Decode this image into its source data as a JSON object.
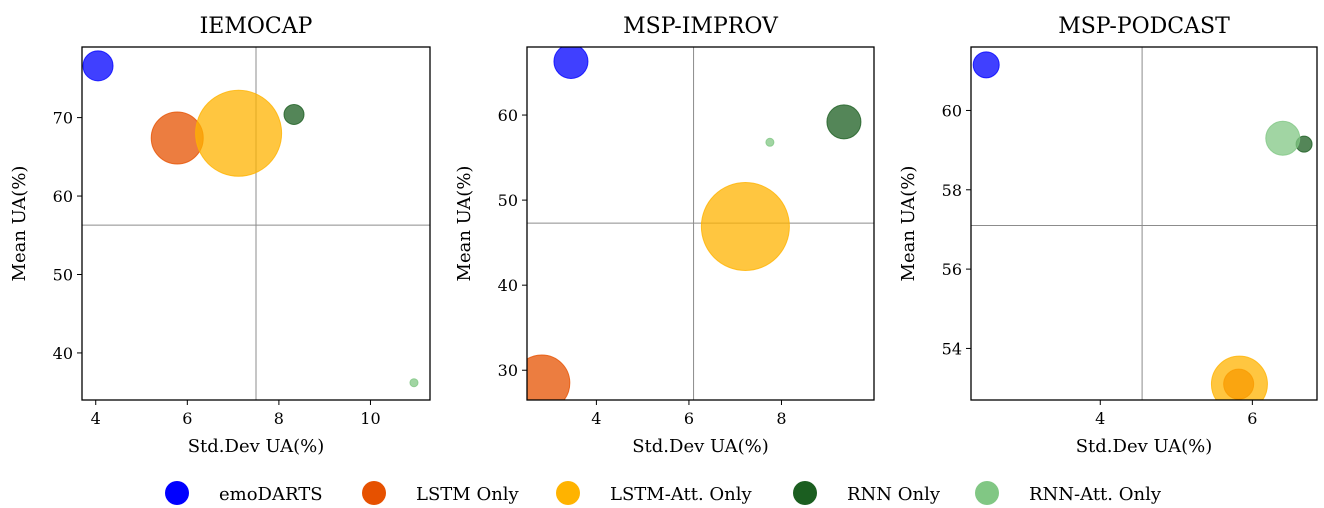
{
  "legend": [
    {
      "label": "emoDARTS",
      "color": "#0000ff"
    },
    {
      "label": "LSTM Only",
      "color": "#e65100"
    },
    {
      "label": "LSTM-Att. Only",
      "color": "#ffb300"
    },
    {
      "label": "RNN Only",
      "color": "#1b5e20"
    },
    {
      "label": "RNN-Att. Only",
      "color": "#81c784"
    }
  ],
  "chart_data": [
    {
      "type": "scatter",
      "title": "IEMOCAP",
      "xlabel": "Std.Dev UA(%)",
      "ylabel": "Mean UA(%)",
      "xlim": [
        3.7,
        11.3
      ],
      "ylim": [
        34.0,
        79.0
      ],
      "xticks": [
        4,
        6,
        8,
        10
      ],
      "yticks": [
        40,
        50,
        60,
        70
      ],
      "vline": 7.5,
      "hline": 56.3,
      "series": [
        {
          "name": "emoDARTS",
          "x": 4.05,
          "y": 76.6,
          "size": 15
        },
        {
          "name": "LSTM Only",
          "x": 5.78,
          "y": 67.4,
          "size": 26
        },
        {
          "name": "LSTM-Att. Only",
          "x": 7.12,
          "y": 68.0,
          "size": 43
        },
        {
          "name": "RNN Only",
          "x": 8.33,
          "y": 70.4,
          "size": 10
        },
        {
          "name": "RNN-Att. Only",
          "x": 10.95,
          "y": 36.2,
          "size": 4
        }
      ]
    },
    {
      "type": "scatter",
      "title": "MSP-IMPROV",
      "xlabel": "Std.Dev UA(%)",
      "ylabel": "Mean UA(%)",
      "xlim": [
        2.5,
        10.0
      ],
      "ylim": [
        26.5,
        68.0
      ],
      "xticks": [
        4,
        6,
        8
      ],
      "yticks": [
        30,
        40,
        50,
        60
      ],
      "vline": 6.1,
      "hline": 47.3,
      "series": [
        {
          "name": "emoDARTS",
          "x": 3.45,
          "y": 66.3,
          "size": 17
        },
        {
          "name": "LSTM Only",
          "x": 2.82,
          "y": 28.5,
          "size": 28
        },
        {
          "name": "LSTM-Att. Only",
          "x": 7.22,
          "y": 46.9,
          "size": 44
        },
        {
          "name": "RNN Only",
          "x": 9.35,
          "y": 59.2,
          "size": 17
        },
        {
          "name": "RNN-Att. Only",
          "x": 7.75,
          "y": 56.8,
          "size": 4
        }
      ]
    },
    {
      "type": "scatter",
      "title": "MSP-PODCAST",
      "xlabel": "Std.Dev UA(%)",
      "ylabel": "Mean UA(%)",
      "xlim": [
        2.3,
        6.85
      ],
      "ylim": [
        52.7,
        61.6
      ],
      "xticks": [
        4,
        6
      ],
      "yticks": [
        54,
        56,
        58,
        60
      ],
      "vline": 4.55,
      "hline": 57.1,
      "series": [
        {
          "name": "emoDARTS",
          "x": 2.5,
          "y": 61.15,
          "size": 13
        },
        {
          "name": "LSTM Only",
          "x": 5.82,
          "y": 53.1,
          "size": 15
        },
        {
          "name": "LSTM-Att. Only",
          "x": 5.83,
          "y": 53.1,
          "size": 28
        },
        {
          "name": "RNN Only",
          "x": 6.68,
          "y": 59.15,
          "size": 8
        },
        {
          "name": "RNN-Att. Only",
          "x": 6.4,
          "y": 59.3,
          "size": 17
        }
      ]
    }
  ]
}
